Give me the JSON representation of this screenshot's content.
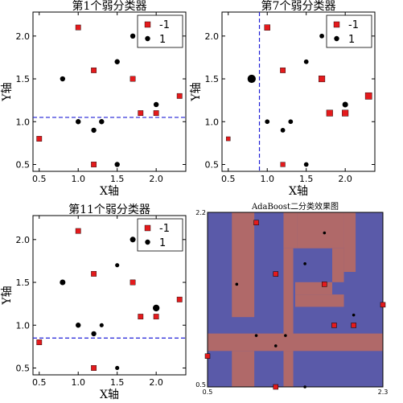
{
  "chart_data": [
    {
      "type": "scatter",
      "title": "第1个弱分类器",
      "xlabel": "X轴",
      "ylabel": "Y轴",
      "xlim": [
        0.42,
        2.38
      ],
      "ylim": [
        0.42,
        2.28
      ],
      "xticks": [
        "0.5",
        "1.0",
        "1.5",
        "2.0"
      ],
      "yticks": [
        "0.5",
        "1.0",
        "1.5",
        "2.0"
      ],
      "legend": {
        "placement": "top-right",
        "entries": [
          "-1",
          "1"
        ]
      },
      "series": [
        {
          "name": "-1",
          "color": "#e41a1c",
          "marker": "square",
          "points": [
            [
              0.5,
              0.8
            ],
            [
              1.0,
              2.1
            ],
            [
              1.2,
              1.6
            ],
            [
              1.2,
              0.5
            ],
            [
              1.7,
              1.5
            ],
            [
              1.8,
              1.1
            ],
            [
              2.0,
              1.1
            ],
            [
              2.3,
              1.3
            ]
          ],
          "sizes": [
            1,
            1,
            1,
            1,
            1,
            1,
            1,
            1
          ]
        },
        {
          "name": "1",
          "color": "#000000",
          "marker": "circle",
          "points": [
            [
              0.8,
              1.5
            ],
            [
              1.0,
              1.0
            ],
            [
              1.2,
              0.9
            ],
            [
              1.3,
              1.0
            ],
            [
              1.5,
              1.7
            ],
            [
              1.7,
              2.0
            ],
            [
              1.5,
              0.5
            ],
            [
              2.0,
              1.2
            ]
          ],
          "sizes": [
            1,
            1,
            1,
            1,
            1,
            1,
            1,
            1
          ]
        }
      ],
      "line": {
        "orientation": "horizontal",
        "value": 1.05,
        "color": "#1f1fd6",
        "style": "dashed"
      }
    },
    {
      "type": "scatter",
      "title": "第7个弱分类器",
      "xlabel": "X轴",
      "ylabel": "Y轴",
      "xlim": [
        0.42,
        2.38
      ],
      "ylim": [
        0.42,
        2.28
      ],
      "xticks": [
        "0.5",
        "1.0",
        "1.5",
        "2.0"
      ],
      "yticks": [
        "0.5",
        "1.0",
        "1.5",
        "2.0"
      ],
      "legend": {
        "placement": "top-right",
        "entries": [
          "-1",
          "1"
        ]
      },
      "series": [
        {
          "name": "-1",
          "color": "#e41a1c",
          "marker": "square",
          "points": [
            [
              0.5,
              0.8
            ],
            [
              1.0,
              2.1
            ],
            [
              1.2,
              1.6
            ],
            [
              1.2,
              0.5
            ],
            [
              1.7,
              1.5
            ],
            [
              1.8,
              1.1
            ],
            [
              2.0,
              1.1
            ],
            [
              2.3,
              1.3
            ]
          ],
          "sizes": [
            0.8,
            1.1,
            1,
            0.9,
            1.2,
            1.2,
            1.2,
            1.3
          ]
        },
        {
          "name": "1",
          "color": "#000000",
          "marker": "circle",
          "points": [
            [
              0.8,
              1.5
            ],
            [
              1.0,
              1.0
            ],
            [
              1.2,
              0.9
            ],
            [
              1.3,
              1.0
            ],
            [
              1.5,
              1.7
            ],
            [
              1.7,
              2.0
            ],
            [
              1.5,
              0.5
            ],
            [
              2.0,
              1.2
            ]
          ],
          "sizes": [
            1.6,
            0.9,
            0.9,
            0.9,
            0.9,
            0.9,
            0.9,
            1.1
          ]
        }
      ],
      "line": {
        "orientation": "vertical",
        "value": 0.9,
        "color": "#1f1fd6",
        "style": "dashed"
      }
    },
    {
      "type": "scatter",
      "title": "第11个弱分类器",
      "xlabel": "X轴",
      "ylabel": "Y轴",
      "xlim": [
        0.42,
        2.38
      ],
      "ylim": [
        0.42,
        2.28
      ],
      "xticks": [
        "0.5",
        "1.0",
        "1.5",
        "2.0"
      ],
      "yticks": [
        "0.5",
        "1.0",
        "1.5",
        "2.0"
      ],
      "legend": {
        "placement": "top-right",
        "entries": [
          "-1",
          "1"
        ]
      },
      "series": [
        {
          "name": "-1",
          "color": "#e41a1c",
          "marker": "square",
          "points": [
            [
              0.5,
              0.8
            ],
            [
              1.0,
              2.1
            ],
            [
              1.2,
              1.6
            ],
            [
              1.2,
              0.5
            ],
            [
              1.7,
              1.5
            ],
            [
              1.8,
              1.1
            ],
            [
              2.0,
              1.1
            ],
            [
              2.3,
              1.3
            ]
          ],
          "sizes": [
            1,
            1,
            1,
            1,
            1,
            1,
            1,
            1
          ]
        },
        {
          "name": "1",
          "color": "#000000",
          "marker": "circle",
          "points": [
            [
              0.8,
              1.5
            ],
            [
              1.0,
              1.0
            ],
            [
              1.2,
              0.9
            ],
            [
              1.3,
              1.0
            ],
            [
              1.5,
              1.7
            ],
            [
              1.7,
              2.0
            ],
            [
              1.5,
              0.5
            ],
            [
              2.0,
              1.2
            ]
          ],
          "sizes": [
            1.1,
            1,
            1,
            0.8,
            0.8,
            1.1,
            0.8,
            1.3
          ]
        }
      ],
      "line": {
        "orientation": "horizontal",
        "value": 0.85,
        "color": "#1f1fd6",
        "style": "dashed"
      }
    },
    {
      "type": "heatmap",
      "title": "AdaBoost二分类效果图",
      "xlim": [
        0.5,
        2.3
      ],
      "ylim": [
        0.5,
        2.2
      ],
      "xticks": [
        "0.5",
        "2.3"
      ],
      "yticks": [
        "0.5",
        "2.2"
      ],
      "colors": {
        "positive": "#5a5aa9",
        "negative": "#b06969"
      },
      "regions_negative": [
        [
          0.75,
          0.98,
          1.18,
          2.2
        ],
        [
          1.28,
          1.42,
          1.85,
          2.2
        ],
        [
          1.42,
          1.9,
          1.85,
          2.2
        ],
        [
          1.9,
          2.02,
          1.62,
          2.2
        ],
        [
          1.78,
          1.9,
          1.52,
          1.85
        ],
        [
          1.28,
          1.38,
          0.5,
          1.85
        ],
        [
          0.5,
          2.3,
          0.85,
          1.02
        ],
        [
          0.75,
          0.98,
          0.5,
          0.85
        ],
        [
          1.4,
          1.9,
          1.28,
          1.4
        ],
        [
          1.4,
          1.78,
          1.4,
          1.52
        ]
      ],
      "points_neg": [
        [
          0.5,
          0.8
        ],
        [
          1.0,
          2.1
        ],
        [
          1.2,
          1.6
        ],
        [
          1.2,
          0.5
        ],
        [
          1.7,
          1.5
        ],
        [
          1.8,
          1.1
        ],
        [
          2.0,
          1.1
        ],
        [
          2.3,
          1.3
        ]
      ],
      "points_pos": [
        [
          0.8,
          1.5
        ],
        [
          1.0,
          1.0
        ],
        [
          1.2,
          0.9
        ],
        [
          1.3,
          1.0
        ],
        [
          1.5,
          1.7
        ],
        [
          1.7,
          2.0
        ],
        [
          1.5,
          0.5
        ],
        [
          2.0,
          1.2
        ]
      ]
    }
  ]
}
